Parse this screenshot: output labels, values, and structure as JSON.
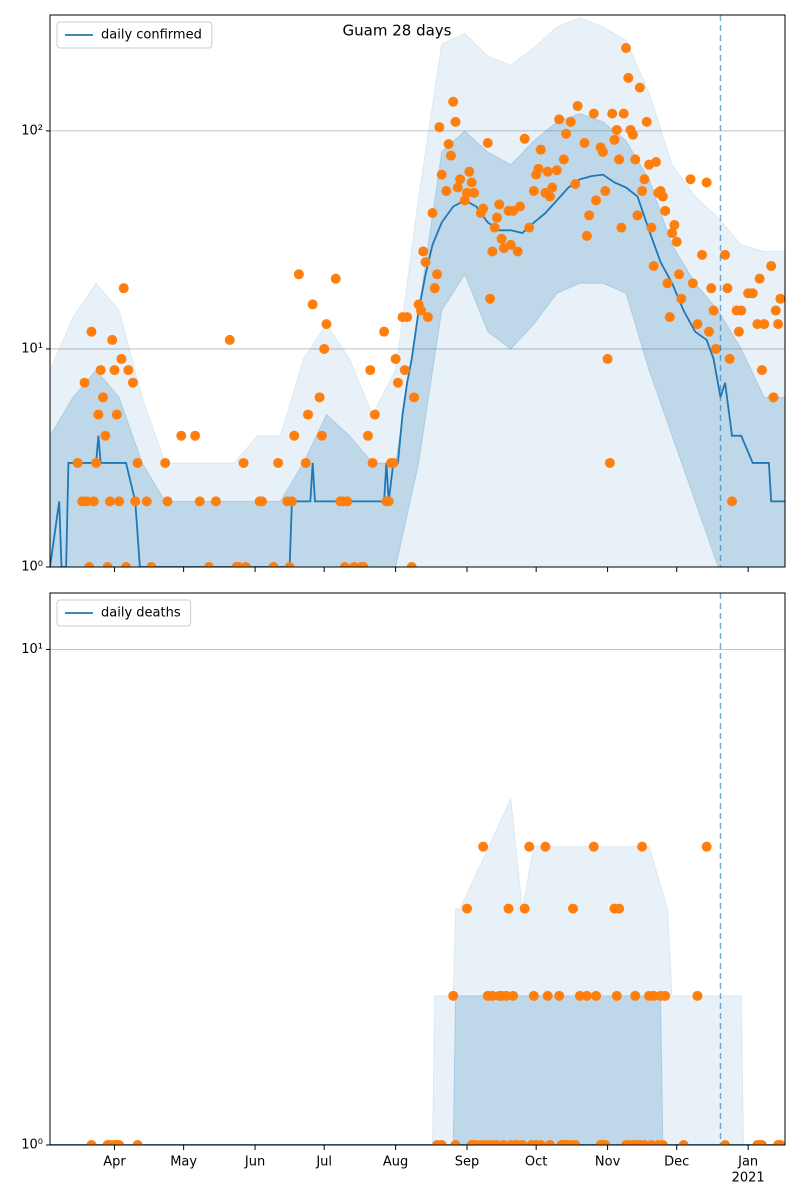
{
  "chart_data": [
    {
      "type": "line",
      "title": "Guam 28 days",
      "log_y": true,
      "grid": "y",
      "legend": "upper left",
      "show_xtick_labels": false,
      "xlim": [
        0,
        319
      ],
      "xticks": [
        28,
        58,
        89,
        119,
        150,
        181,
        211,
        242,
        272,
        303
      ],
      "ylim": [
        1,
        340
      ],
      "yticks": [
        {
          "value": 1,
          "label": "10⁰"
        },
        {
          "value": 10,
          "label": "10¹"
        },
        {
          "value": 100,
          "label": "10²"
        }
      ],
      "vline": {
        "x": 291,
        "color": "#1f77b4"
      },
      "bands": [
        {
          "color": "#1f77b4",
          "opacity": 0.1,
          "x": [
            0,
            10,
            20,
            30,
            40,
            50,
            60,
            70,
            80,
            90,
            100,
            110,
            120,
            130,
            140,
            150,
            160,
            170,
            180,
            190,
            200,
            210,
            220,
            230,
            240,
            250,
            260,
            270,
            280,
            290,
            300,
            310,
            319
          ],
          "lower": [
            1,
            1,
            1,
            1,
            1,
            1,
            1,
            1,
            1,
            1,
            1,
            1,
            1,
            1,
            1,
            1,
            1,
            1,
            1,
            1,
            1,
            1,
            1,
            1,
            1,
            1,
            1,
            1,
            1,
            1,
            1,
            1,
            1
          ],
          "upper": [
            8,
            14,
            20,
            15,
            6,
            3,
            3,
            3,
            3,
            4,
            4,
            9,
            13,
            9,
            5,
            8,
            50,
            250,
            280,
            220,
            200,
            240,
            300,
            330,
            300,
            260,
            150,
            70,
            50,
            40,
            30,
            28,
            28
          ]
        },
        {
          "color": "#1f77b4",
          "opacity": 0.2,
          "x": [
            0,
            10,
            20,
            30,
            40,
            50,
            60,
            70,
            80,
            90,
            100,
            110,
            120,
            130,
            140,
            150,
            160,
            170,
            180,
            190,
            200,
            210,
            220,
            230,
            240,
            250,
            260,
            270,
            280,
            290,
            300,
            310,
            319
          ],
          "lower": [
            1,
            1,
            1,
            1,
            1,
            1,
            1,
            1,
            1,
            1,
            1,
            1,
            1,
            1,
            1,
            1,
            3,
            15,
            22,
            12,
            10,
            13,
            18,
            20,
            20,
            18,
            8,
            4,
            2,
            1,
            1,
            1,
            1
          ],
          "upper": [
            4,
            6,
            8,
            6,
            3,
            2,
            2,
            2,
            2,
            2,
            2,
            3,
            5,
            4,
            3,
            3,
            15,
            80,
            100,
            80,
            70,
            90,
            110,
            120,
            110,
            90,
            60,
            30,
            20,
            15,
            10,
            6,
            6
          ]
        }
      ],
      "series": [
        {
          "name": "daily confirmed",
          "color": "#1f77b4",
          "x": [
            0,
            4,
            5,
            7,
            8,
            20,
            21,
            22,
            33,
            37,
            39,
            104,
            105,
            113,
            114,
            115,
            145,
            146,
            147,
            149,
            151,
            153,
            155,
            157,
            160,
            163,
            166,
            170,
            175,
            180,
            185,
            190,
            195,
            200,
            205,
            210,
            215,
            220,
            225,
            230,
            235,
            240,
            245,
            250,
            255,
            260,
            265,
            270,
            275,
            280,
            285,
            288,
            291,
            293,
            296,
            300,
            305,
            312,
            313,
            319
          ],
          "values": [
            1,
            2,
            1,
            1,
            3,
            3,
            4,
            3,
            3,
            2,
            1,
            1,
            2,
            2,
            3,
            2,
            2,
            3,
            2,
            3,
            3,
            5,
            7,
            9,
            15,
            22,
            30,
            38,
            45,
            48,
            45,
            38,
            35,
            35,
            34,
            38,
            42,
            48,
            55,
            60,
            62,
            63,
            58,
            55,
            50,
            35,
            25,
            20,
            15,
            12,
            11,
            9,
            6,
            7,
            4,
            4,
            3,
            3,
            2,
            2
          ]
        }
      ],
      "points": {
        "color": "#ff7f0e",
        "x": [
          12,
          14,
          15,
          16,
          17,
          18,
          19,
          20,
          21,
          22,
          23,
          24,
          25,
          26,
          27,
          28,
          29,
          30,
          31,
          32,
          33,
          34,
          36,
          37,
          38,
          42,
          44,
          50,
          51,
          57,
          63,
          65,
          69,
          72,
          78,
          81,
          82,
          84,
          85,
          91,
          92,
          97,
          99,
          103,
          104,
          105,
          106,
          108,
          111,
          112,
          114,
          117,
          118,
          119,
          120,
          124,
          126,
          127,
          128,
          129,
          132,
          135,
          136,
          138,
          139,
          140,
          141,
          145,
          146,
          147,
          148,
          149,
          150,
          151,
          153,
          154,
          155,
          157,
          158,
          160,
          161,
          162,
          163,
          164,
          166,
          167,
          168,
          169,
          170,
          172,
          173,
          174,
          175,
          176,
          177,
          178,
          180,
          181,
          182,
          183,
          184,
          187,
          188,
          190,
          191,
          192,
          193,
          194,
          195,
          196,
          197,
          199,
          200,
          201,
          203,
          204,
          206,
          208,
          210,
          211,
          212,
          213,
          215,
          216,
          217,
          218,
          220,
          221,
          223,
          224,
          226,
          228,
          229,
          232,
          233,
          234,
          236,
          237,
          239,
          240,
          241,
          242,
          243,
          244,
          245,
          246,
          247,
          248,
          249,
          250,
          251,
          252,
          253,
          254,
          255,
          256,
          257,
          258,
          259,
          260,
          261,
          262,
          263,
          264,
          265,
          266,
          267,
          268,
          269,
          270,
          271,
          272,
          273,
          274,
          278,
          279,
          281,
          283,
          285,
          286,
          287,
          288,
          289,
          293,
          294,
          295,
          296,
          298,
          299,
          300,
          303,
          305,
          307,
          308,
          309,
          310,
          313,
          314,
          315,
          316,
          317
        ],
        "values": [
          3,
          2,
          7,
          2,
          1,
          12,
          2,
          3,
          5,
          8,
          6,
          4,
          1,
          2,
          11,
          8,
          5,
          2,
          9,
          19,
          1,
          8,
          7,
          2,
          3,
          2,
          1,
          3,
          2,
          4,
          4,
          2,
          1,
          2,
          11,
          1,
          1,
          3,
          1,
          2,
          2,
          1,
          3,
          2,
          1,
          2,
          4,
          22,
          3,
          5,
          16,
          6,
          4,
          10,
          13,
          21,
          2,
          2,
          1,
          2,
          1,
          1,
          1,
          4,
          8,
          3,
          5,
          12,
          2,
          2,
          3,
          3,
          9,
          7,
          14,
          8,
          14,
          1,
          6,
          16,
          15,
          28,
          25,
          14,
          42,
          19,
          22,
          104,
          63,
          53,
          87,
          77,
          136,
          110,
          55,
          60,
          48,
          52,
          65,
          58,
          52,
          42,
          44,
          88,
          17,
          28,
          36,
          40,
          46,
          32,
          29,
          43,
          30,
          43,
          28,
          45,
          92,
          36,
          53,
          63,
          67,
          82,
          52,
          65,
          50,
          55,
          66,
          113,
          74,
          97,
          110,
          57,
          130,
          88,
          33,
          41,
          120,
          48,
          84,
          80,
          53,
          9,
          3,
          120,
          91,
          101,
          74,
          36,
          120,
          240,
          175,
          101,
          96,
          74,
          41,
          158,
          53,
          60,
          110,
          70,
          36,
          24,
          72,
          52,
          53,
          50,
          43,
          20,
          14,
          34,
          37,
          31,
          22,
          17,
          60,
          20,
          13,
          27,
          58,
          12,
          19,
          15,
          10,
          27,
          19,
          9,
          2,
          15,
          12,
          15,
          18,
          18,
          13,
          21,
          8,
          13,
          24,
          6,
          15,
          13,
          17
        ]
      }
    },
    {
      "type": "line",
      "log_y": true,
      "grid": "y",
      "legend": "upper left",
      "show_xtick_labels": true,
      "xlim": [
        0,
        319
      ],
      "xticks": [
        {
          "value": 28,
          "label": "Apr"
        },
        {
          "value": 58,
          "label": "May"
        },
        {
          "value": 89,
          "label": "Jun"
        },
        {
          "value": 119,
          "label": "Jul"
        },
        {
          "value": 150,
          "label": "Aug"
        },
        {
          "value": 181,
          "label": "Sep"
        },
        {
          "value": 211,
          "label": "Oct"
        },
        {
          "value": 242,
          "label": "Nov"
        },
        {
          "value": 272,
          "label": "Dec"
        },
        {
          "value": 303,
          "label": "Jan"
        }
      ],
      "xtick_year": {
        "value": 303,
        "label": "2021"
      },
      "ylim": [
        1,
        13
      ],
      "yticks": [
        {
          "value": 1,
          "label": "10⁰"
        },
        {
          "value": 10,
          "label": "10¹"
        }
      ],
      "vline": {
        "x": 291,
        "color": "#1f77b4"
      },
      "bands": [
        {
          "color": "#1f77b4",
          "opacity": 0.1,
          "x": [
            0,
            166,
            167,
            175,
            176,
            178,
            200,
            205,
            210,
            260,
            268,
            270,
            300,
            301,
            319
          ],
          "lower": [
            1,
            1,
            1,
            1,
            1,
            1,
            1,
            1,
            1,
            1,
            1,
            1,
            1,
            1,
            1
          ],
          "upper": [
            1,
            1,
            2,
            2,
            3,
            3,
            5,
            3,
            4,
            4,
            3,
            2,
            2,
            1,
            1
          ]
        },
        {
          "color": "#1f77b4",
          "opacity": 0.2,
          "x": [
            0,
            175,
            176,
            265,
            266,
            319
          ],
          "lower": [
            1,
            1,
            1,
            1,
            1,
            1
          ],
          "upper": [
            1,
            1,
            2,
            2,
            1,
            1
          ]
        }
      ],
      "series": [
        {
          "name": "daily deaths",
          "color": "#1f77b4",
          "x": [
            0,
            319
          ],
          "values": [
            1,
            1
          ]
        }
      ],
      "points": {
        "color": "#ff7f0e",
        "x": [
          18,
          25,
          26,
          28,
          29,
          30,
          38,
          168,
          170,
          175,
          176,
          181,
          183,
          184,
          185,
          187,
          188,
          189,
          190,
          191,
          192,
          193,
          194,
          195,
          196,
          197,
          198,
          199,
          200,
          201,
          202,
          203,
          205,
          206,
          208,
          209,
          210,
          211,
          213,
          215,
          216,
          217,
          221,
          222,
          223,
          224,
          225,
          226,
          227,
          228,
          230,
          233,
          236,
          237,
          239,
          240,
          241,
          245,
          246,
          247,
          250,
          251,
          253,
          254,
          255,
          256,
          257,
          258,
          260,
          261,
          262,
          264,
          265,
          266,
          267,
          275,
          281,
          285,
          293,
          307,
          308,
          309,
          316,
          317
        ],
        "values": [
          1,
          1,
          1,
          1,
          1,
          1,
          1,
          1,
          1,
          2,
          1,
          3,
          1,
          1,
          1,
          1,
          4,
          1,
          2,
          1,
          2,
          1,
          1,
          2,
          2,
          1,
          2,
          3,
          1,
          2,
          1,
          1,
          1,
          3,
          4,
          1,
          2,
          1,
          1,
          4,
          2,
          1,
          2,
          1,
          1,
          1,
          1,
          1,
          3,
          1,
          2,
          2,
          4,
          2,
          1,
          1,
          1,
          3,
          2,
          3,
          1,
          1,
          1,
          2,
          1,
          1,
          4,
          1,
          2,
          1,
          2,
          1,
          2,
          1,
          2,
          1,
          2,
          4,
          1,
          1,
          1,
          1,
          1,
          1
        ]
      }
    }
  ]
}
